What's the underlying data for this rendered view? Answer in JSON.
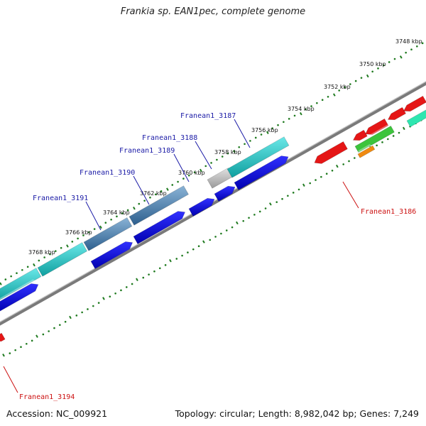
{
  "title": "Frankia sp. EAN1pec, complete genome",
  "footer": {
    "accession": "Accession: NC_009921",
    "stats": "Topology: circular; Length: 8,982,042 bp; Genes: 7,249"
  },
  "colors": {
    "backbone": "#7a7a7a",
    "scale_dots": "#1f7a1f",
    "forward_label": "#1a1aa6",
    "reverse_label": "#cc1111",
    "gene_blue": "#0a0ae0",
    "gene_cyan": "#19c4c4",
    "gene_steel": "#4a7fae",
    "gene_gray": "#b8b8b8",
    "gene_red": "#e51616",
    "gene_green": "#3cc43c",
    "gene_orange": "#f08a10",
    "gene_aqua": "#2ee6b0"
  },
  "scale_ticks": [
    {
      "label": "3748 kbp"
    },
    {
      "label": "3750 kbp"
    },
    {
      "label": "3752 kbp"
    },
    {
      "label": "3754 kbp"
    },
    {
      "label": "3756 kbp"
    },
    {
      "label": "3758 kbp"
    },
    {
      "label": "3760 kbp"
    },
    {
      "label": "3762 kbp"
    },
    {
      "label": "3764 kbp"
    },
    {
      "label": "3766 kbp"
    },
    {
      "label": "3768 kbp"
    }
  ],
  "gene_labels": [
    {
      "name": "Franean1_3187",
      "strand": "forward"
    },
    {
      "name": "Franean1_3188",
      "strand": "forward"
    },
    {
      "name": "Franean1_3189",
      "strand": "forward"
    },
    {
      "name": "Franean1_3190",
      "strand": "forward"
    },
    {
      "name": "Franean1_3191",
      "strand": "forward"
    },
    {
      "name": "Franean1_3186",
      "strand": "reverse"
    },
    {
      "name": "Franean1_3194",
      "strand": "reverse"
    }
  ]
}
